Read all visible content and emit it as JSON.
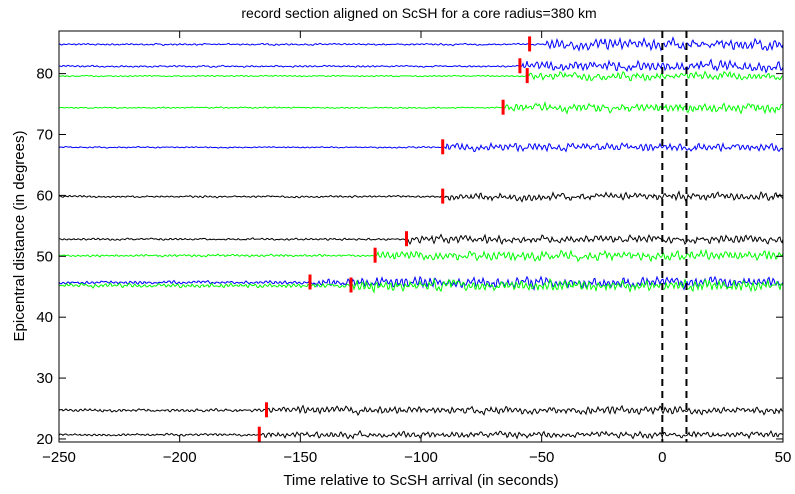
{
  "chart_data": {
    "type": "line",
    "title": "record section aligned on ScSH for a core radius=380 km",
    "xlabel": "Time relative to ScSH arrival (in seconds)",
    "ylabel": "Epicentral distance (in degrees)",
    "xlim": [
      -250,
      50
    ],
    "ylim": [
      19.5,
      87
    ],
    "xticks": [
      -250,
      -200,
      -150,
      -100,
      -50,
      0,
      50
    ],
    "yticks": [
      20,
      30,
      40,
      50,
      60,
      70,
      80
    ],
    "grid": false,
    "legend": "none",
    "reference_lines": [
      0,
      10
    ],
    "colors": {
      "blue": "#0000ff",
      "green": "#00ff00",
      "black": "#000000",
      "marker": "#ff0000",
      "reference": "#000000"
    },
    "series": [
      {
        "distance": 84.8,
        "color": "blue",
        "onset": -48,
        "marker": -55,
        "amp_pre": 0.25,
        "amp_post": 1.6
      },
      {
        "distance": 81.2,
        "color": "blue",
        "onset": -58,
        "marker": -59,
        "amp_pre": 0.25,
        "amp_post": 1.5
      },
      {
        "distance": 79.6,
        "color": "green",
        "onset": -56,
        "marker": -56,
        "amp_pre": 0.2,
        "amp_post": 1.2
      },
      {
        "distance": 74.4,
        "color": "green",
        "onset": -65,
        "marker": -66,
        "amp_pre": 0.2,
        "amp_post": 1.3
      },
      {
        "distance": 67.9,
        "color": "blue",
        "onset": -90,
        "marker": -91,
        "amp_pre": 0.2,
        "amp_post": 1.2
      },
      {
        "distance": 59.8,
        "color": "black",
        "onset": -90,
        "marker": -91,
        "amp_pre": 0.3,
        "amp_post": 1.2
      },
      {
        "distance": 52.8,
        "color": "black",
        "onset": -105,
        "marker": -106,
        "amp_pre": 0.3,
        "amp_post": 1.2
      },
      {
        "distance": 50.1,
        "color": "green",
        "onset": -118,
        "marker": -119,
        "amp_pre": 0.35,
        "amp_post": 1.4
      },
      {
        "distance": 45.7,
        "color": "blue",
        "onset": -145,
        "marker": -146,
        "amp_pre": 0.5,
        "amp_post": 1.6
      },
      {
        "distance": 45.2,
        "color": "green",
        "onset": -128,
        "marker": -129,
        "amp_pre": 0.6,
        "amp_post": 1.6
      },
      {
        "distance": 24.7,
        "color": "black",
        "onset": -163,
        "marker": -164,
        "amp_pre": 0.45,
        "amp_post": 1.1
      },
      {
        "distance": 20.7,
        "color": "black",
        "onset": -166,
        "marker": -167,
        "amp_pre": 0.35,
        "amp_post": 0.9
      }
    ]
  }
}
